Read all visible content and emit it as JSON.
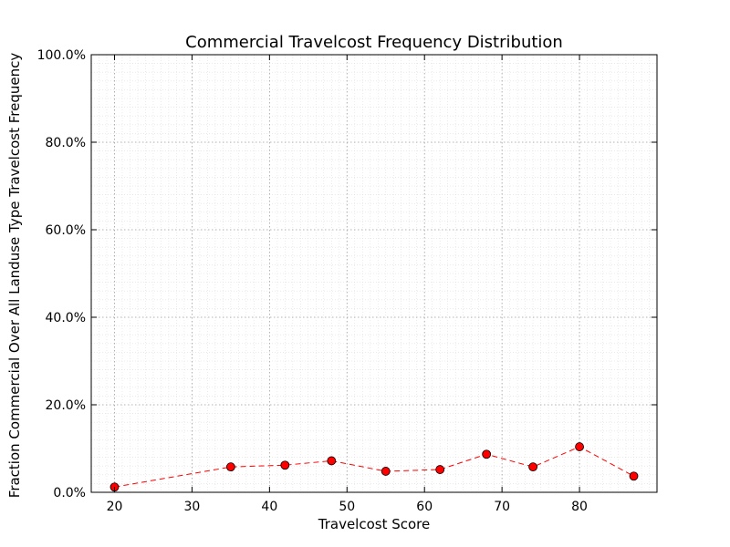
{
  "chart_data": {
    "type": "line",
    "title": "Commercial Travelcost Frequency Distribution",
    "xlabel": "Travelcost Score",
    "ylabel": "Fraction Commercial Over All Landuse Type Travelcost Frequency",
    "xlim": [
      17,
      90
    ],
    "ylim": [
      0,
      1
    ],
    "x_ticks": [
      20,
      30,
      40,
      50,
      60,
      70,
      80
    ],
    "x_tick_labels": [
      "20",
      "30",
      "40",
      "50",
      "60",
      "70",
      "80"
    ],
    "y_ticks": [
      0,
      0.2,
      0.4,
      0.6,
      0.8,
      1.0
    ],
    "y_tick_labels": [
      "0.0%",
      "20.0%",
      "40.0%",
      "60.0%",
      "80.0%",
      "100.0%"
    ],
    "grid": true,
    "legend": "none",
    "series": [
      {
        "color": "#ff0000",
        "marker_color": "#ff0000",
        "line_style": "dashed",
        "x": [
          20,
          35,
          42,
          48,
          55,
          62,
          68,
          74,
          80,
          87
        ],
        "y": [
          0.012,
          0.058,
          0.062,
          0.072,
          0.048,
          0.052,
          0.087,
          0.058,
          0.104,
          0.037
        ]
      }
    ]
  }
}
